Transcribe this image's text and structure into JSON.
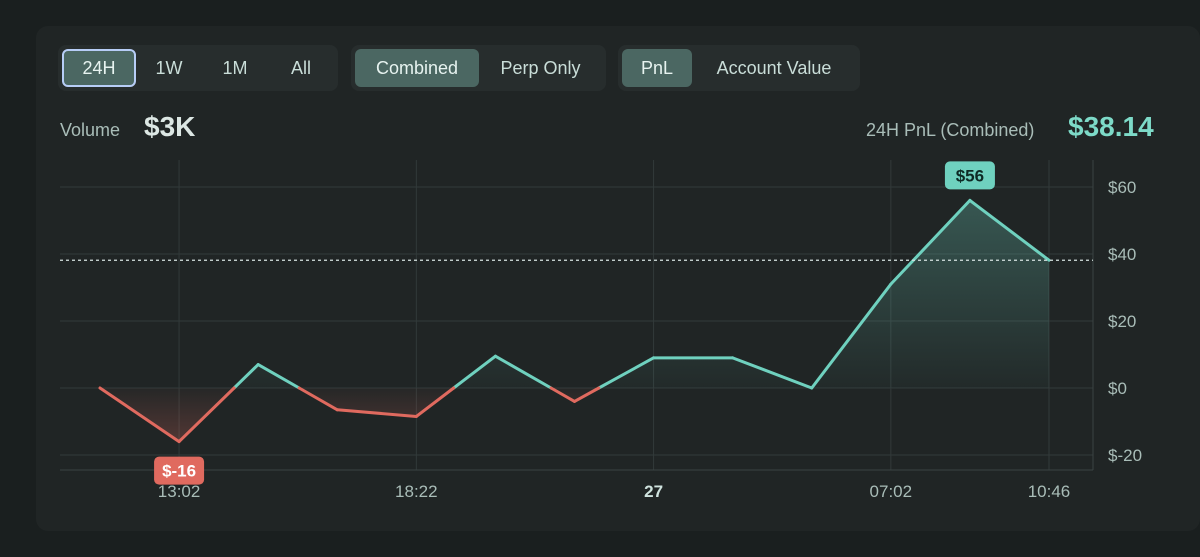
{
  "timeframe_tabs": [
    {
      "label": "24H",
      "state": "focused"
    },
    {
      "label": "1W",
      "state": "normal"
    },
    {
      "label": "1M",
      "state": "normal"
    },
    {
      "label": "All",
      "state": "normal"
    }
  ],
  "mode_tabs": [
    {
      "label": "Combined",
      "state": "active"
    },
    {
      "label": "Perp Only",
      "state": "normal"
    }
  ],
  "metric_tabs": [
    {
      "label": "PnL",
      "state": "active"
    },
    {
      "label": "Account Value",
      "state": "normal"
    }
  ],
  "volume": {
    "label": "Volume",
    "value": "$3K"
  },
  "pnl_summary": {
    "label": "24H PnL (Combined)",
    "value": "$38.14"
  },
  "colors": {
    "positive": "#6fd1bf",
    "negative": "#e06a5f",
    "badge_text_pos": "#0e2a25",
    "badge_text_neg": "#ffffff"
  },
  "chart_data": {
    "type": "area",
    "y_ticks": [
      60,
      40,
      20,
      0,
      -20
    ],
    "y_tick_labels": [
      "$60",
      "$40",
      "$20",
      "$0",
      "$-20"
    ],
    "ylim": [
      -25,
      65
    ],
    "x_ticks": [
      {
        "label": "13:02",
        "x": 2,
        "bold": false
      },
      {
        "label": "18:22",
        "x": 8,
        "bold": false
      },
      {
        "label": "27",
        "x": 14,
        "bold": true
      },
      {
        "label": "07:02",
        "x": 20,
        "bold": false
      },
      {
        "label": "10:46",
        "x": 24,
        "bold": false
      }
    ],
    "xlim": [
      -0.5,
      25
    ],
    "points": [
      {
        "x": 0,
        "y": 0
      },
      {
        "x": 2,
        "y": -16
      },
      {
        "x": 4,
        "y": 7
      },
      {
        "x": 6,
        "y": -6.5
      },
      {
        "x": 8,
        "y": -8.5
      },
      {
        "x": 10,
        "y": 9.5
      },
      {
        "x": 12,
        "y": -4
      },
      {
        "x": 14,
        "y": 9
      },
      {
        "x": 16,
        "y": 9
      },
      {
        "x": 18,
        "y": 0
      },
      {
        "x": 20,
        "y": 31
      },
      {
        "x": 22,
        "y": 56
      },
      {
        "x": 24,
        "y": 38.14
      }
    ],
    "reference_line": 38.14,
    "max_label": "$56",
    "min_label": "$-16",
    "grid": true
  }
}
